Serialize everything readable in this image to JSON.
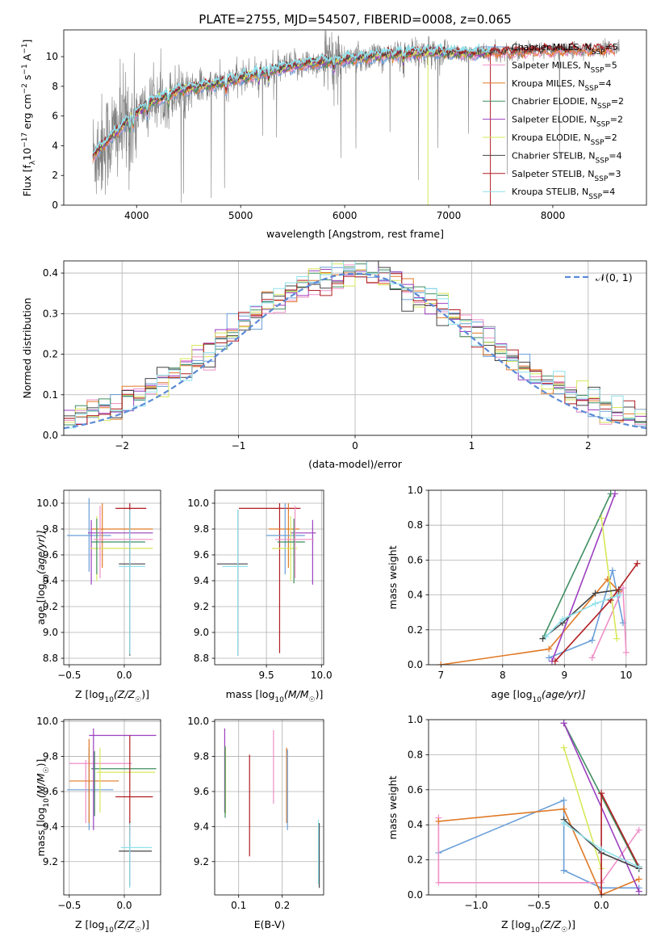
{
  "figure": {
    "title": "PLATE=2755, MJD=54507, FIBERID=0008, z=0.065"
  },
  "colors": {
    "data": "#7f7f7f",
    "palette": [
      "#6a9fd8",
      "#ef8fc7",
      "#e07a27",
      "#3f8f60",
      "#9b3fbf",
      "#d7e85a",
      "#444444",
      "#b11d22",
      "#8fe1ec"
    ]
  },
  "chart_data": [
    {
      "id": "spectrum",
      "type": "line",
      "title": "PLATE=2755, MJD=54507, FIBERID=0008, z=0.065",
      "xlabel": "wavelength [Angstrom, rest frame]",
      "ylabel": "Flux [f",
      "ylabel_sub": "λ",
      "ylabel_mid": "10",
      "ylabel_sup": "−17",
      "ylabel_end": " erg cm",
      "ylabel_sup2": "−2",
      "ylabel_tail": " s",
      "ylabel_sup3": "−1",
      "ylabel_a": " A",
      "ylabel_sup4": "−1",
      "ylabel_close": "]",
      "xlim": [
        3300,
        8900
      ],
      "ylim": [
        0,
        11.8
      ],
      "xticks": [
        4000,
        5000,
        6000,
        7000,
        8000
      ],
      "yticks": [
        0,
        2,
        4,
        6,
        8,
        10
      ],
      "grid": false,
      "legend_position": "right",
      "continuum_knots": [
        [
          3580,
          3.3
        ],
        [
          3700,
          4.2
        ],
        [
          3900,
          5.6
        ],
        [
          4100,
          6.8
        ],
        [
          4400,
          7.7
        ],
        [
          4800,
          8.2
        ],
        [
          5200,
          8.9
        ],
        [
          5600,
          9.5
        ],
        [
          6000,
          9.8
        ],
        [
          6400,
          10.1
        ],
        [
          6800,
          10.3
        ],
        [
          7200,
          10.2
        ],
        [
          7500,
          10.3
        ],
        [
          8000,
          10.4
        ],
        [
          8500,
          10.5
        ],
        [
          8630,
          10.4
        ]
      ],
      "data_range": [
        3580,
        8640
      ],
      "series": [
        {
          "name": "Chabrier MILES",
          "nssp": "5"
        },
        {
          "name": "Salpeter MILES",
          "nssp": "5"
        },
        {
          "name": "Kroupa MILES",
          "nssp": "4"
        },
        {
          "name": "Chabrier ELODIE",
          "nssp": "2"
        },
        {
          "name": "Salpeter ELODIE",
          "nssp": "2"
        },
        {
          "name": "Kroupa ELODIE",
          "nssp": "2"
        },
        {
          "name": "Chabrier STELIB",
          "nssp": "4"
        },
        {
          "name": "Salpeter STELIB",
          "nssp": "3"
        },
        {
          "name": "Kroupa STELIB",
          "nssp": "4"
        }
      ],
      "legend_prefix": "N",
      "legend_sub": "SSP",
      "legend_eq": "="
    },
    {
      "id": "residuals",
      "type": "histogram",
      "xlabel": "(data-model)/error",
      "ylabel": "Normed distribution",
      "xlim": [
        -2.5,
        2.5
      ],
      "ylim": [
        0,
        0.43
      ],
      "xticks": [
        -2,
        -1,
        0,
        1,
        2
      ],
      "yticks": [
        0.0,
        0.1,
        0.2,
        0.3,
        0.4
      ],
      "grid": true,
      "bin_width": 0.1,
      "legend_position": "top-right",
      "reference": {
        "label": "𝒩(0, 1)",
        "mean": 0,
        "sigma": 1
      }
    },
    {
      "id": "age-vs-z",
      "type": "errorbar",
      "xlabel": "Z [log",
      "xlabel_sub": "10",
      "xlabel_end": "(Z/Z",
      "xlabel_sub2": "☉",
      "xlabel_close": ")]",
      "ylabel": "age  [log",
      "ylabel_sub": "10",
      "ylabel_end": "(age/yr)]",
      "xlim": [
        -0.55,
        0.33
      ],
      "ylim": [
        8.75,
        10.1
      ],
      "xticks": [
        -0.5,
        0.0
      ],
      "yticks": [
        8.8,
        9.0,
        9.2,
        9.4,
        9.6,
        9.8,
        10.0
      ],
      "grid": true,
      "points": [
        {
          "x": -0.32,
          "xe": [
            -0.52,
            -0.12
          ],
          "y": 9.75,
          "ye": [
            9.47,
            10.04
          ],
          "c": 0
        },
        {
          "x": -0.2,
          "xe": [
            -0.3,
            0.26
          ],
          "y": 9.8,
          "ye": [
            9.5,
            10.0
          ],
          "c": 2
        },
        {
          "x": -0.3,
          "xe": [
            -0.33,
            0.26
          ],
          "y": 9.77,
          "ye": [
            9.37,
            9.87
          ],
          "c": 4
        },
        {
          "x": -0.25,
          "xe": [
            -0.31,
            0.26
          ],
          "y": 9.65,
          "ye": [
            9.4,
            9.9
          ],
          "c": 5
        },
        {
          "x": -0.25,
          "xe": [
            -0.3,
            0.19
          ],
          "y": 9.7,
          "ye": [
            9.45,
            9.88
          ],
          "c": 3
        },
        {
          "x": 0.05,
          "xe": [
            -0.08,
            0.2
          ],
          "y": 9.96,
          "ye": [
            9.5,
            10.0
          ],
          "c": 7
        },
        {
          "x": 0.05,
          "xe": [
            -0.05,
            0.19
          ],
          "y": 9.53,
          "ye": [
            8.82,
            9.95
          ],
          "c": 6
        },
        {
          "x": 0.05,
          "xe": [
            -0.05,
            0.19
          ],
          "y": 9.51,
          "ye": [
            8.83,
            9.95
          ],
          "c": 8
        },
        {
          "x": -0.22,
          "xe": [
            -0.28,
            0.26
          ],
          "y": 9.72,
          "ye": [
            9.42,
            9.98
          ],
          "c": 1
        }
      ]
    },
    {
      "id": "age-vs-mass",
      "type": "errorbar",
      "xlabel": "mass [log",
      "xlabel_sub": "10",
      "xlabel_end": "(M/M",
      "xlabel_sub2": "☉",
      "xlabel_close": ")]",
      "xlim": [
        9.03,
        10.02
      ],
      "ylim": [
        8.75,
        10.1
      ],
      "xticks": [
        9.5,
        10.0
      ],
      "yticks": [
        8.8,
        9.0,
        9.2,
        9.4,
        9.6,
        9.8,
        10.0
      ],
      "grid": true,
      "points": [
        {
          "x": 9.62,
          "xe": [
            9.25,
            9.81
          ],
          "y": 9.96,
          "ye": [
            8.84,
            10.0
          ],
          "c": 7
        },
        {
          "x": 9.7,
          "xe": [
            9.52,
            9.8
          ],
          "y": 9.8,
          "ye": [
            9.5,
            10.0
          ],
          "c": 2
        },
        {
          "x": 9.67,
          "xe": [
            9.5,
            9.85
          ],
          "y": 9.75,
          "ye": [
            9.45,
            10.0
          ],
          "c": 0
        },
        {
          "x": 9.92,
          "xe": [
            9.72,
            9.95
          ],
          "y": 9.77,
          "ye": [
            9.37,
            9.87
          ],
          "c": 4
        },
        {
          "x": 9.72,
          "xe": [
            9.55,
            9.78
          ],
          "y": 9.65,
          "ye": [
            9.4,
            9.9
          ],
          "c": 5
        },
        {
          "x": 9.75,
          "xe": [
            9.6,
            9.85
          ],
          "y": 9.7,
          "ye": [
            9.38,
            9.88
          ],
          "c": 3
        },
        {
          "x": 9.24,
          "xe": [
            9.05,
            9.33
          ],
          "y": 9.53,
          "ye": [
            8.82,
            9.95
          ],
          "c": 6
        },
        {
          "x": 9.24,
          "xe": [
            9.1,
            9.33
          ],
          "y": 9.51,
          "ye": [
            8.82,
            9.95
          ],
          "c": 8
        },
        {
          "x": 9.76,
          "xe": [
            9.58,
            9.93
          ],
          "y": 9.72,
          "ye": [
            9.42,
            9.98
          ],
          "c": 1
        }
      ]
    },
    {
      "id": "weight-vs-age",
      "type": "line",
      "xlabel": "age  [log",
      "xlabel_sub": "10",
      "xlabel_end": "(age/yr)]",
      "ylabel": "mass weight",
      "xlim": [
        6.8,
        10.33
      ],
      "ylim": [
        0,
        1
      ],
      "xticks": [
        7,
        8,
        9,
        10
      ],
      "yticks": [
        0.0,
        0.2,
        0.4,
        0.6,
        0.8,
        1.0
      ],
      "grid": true,
      "series": [
        {
          "c": 0,
          "x": [
            8.75,
            9.45,
            9.78,
            9.95
          ],
          "y": [
            0.04,
            0.14,
            0.54,
            0.24
          ]
        },
        {
          "c": 1,
          "x": [
            9.45,
            9.95,
            10.0
          ],
          "y": [
            0.04,
            0.44,
            0.07
          ]
        },
        {
          "c": 2,
          "x": [
            7.0,
            8.75,
            9.7,
            9.88
          ],
          "y": [
            0.0,
            0.09,
            0.49,
            0.42
          ]
        },
        {
          "c": 3,
          "x": [
            8.65,
            9.75
          ],
          "y": [
            0.15,
            0.98
          ]
        },
        {
          "c": 4,
          "x": [
            8.8,
            9.82
          ],
          "y": [
            0.02,
            0.98
          ]
        },
        {
          "c": 5,
          "x": [
            9.6,
            9.85
          ],
          "y": [
            0.84,
            0.15
          ]
        },
        {
          "c": 6,
          "x": [
            8.65,
            8.97,
            9.5,
            9.88
          ],
          "y": [
            0.15,
            0.24,
            0.41,
            0.43
          ]
        },
        {
          "c": 7,
          "x": [
            8.85,
            9.75,
            10.18
          ],
          "y": [
            0.02,
            0.37,
            0.58
          ]
        },
        {
          "c": 8,
          "x": [
            8.7,
            8.97,
            9.5,
            9.9
          ],
          "y": [
            0.16,
            0.26,
            0.35,
            0.4
          ]
        }
      ]
    },
    {
      "id": "mass-vs-z",
      "type": "errorbar",
      "xlabel": "Z [log",
      "xlabel_sub": "10",
      "xlabel_end": "(Z/Z",
      "xlabel_sub2": "☉",
      "xlabel_close": ")]",
      "ylabel": "mass [log",
      "ylabel_sub": "10",
      "ylabel_end": "(M/M",
      "ylabel_sub2": "☉",
      "ylabel_close": ")]",
      "xlim": [
        -0.55,
        0.33
      ],
      "ylim": [
        9.01,
        10.01
      ],
      "xticks": [
        -0.5,
        0.0
      ],
      "yticks": [
        9.2,
        9.4,
        9.6,
        9.8,
        10.0
      ],
      "grid": true,
      "points": [
        {
          "x": -0.32,
          "xe": [
            -0.52,
            -0.1
          ],
          "y": 9.61,
          "ye": [
            9.38,
            9.85
          ],
          "c": 0
        },
        {
          "x": -0.35,
          "xe": [
            -0.5,
            0.07
          ],
          "y": 9.76,
          "ye": [
            9.42,
            9.78
          ],
          "c": 1
        },
        {
          "x": -0.32,
          "xe": [
            -0.5,
            -0.05
          ],
          "y": 9.66,
          "ye": [
            9.42,
            9.9
          ],
          "c": 2
        },
        {
          "x": -0.27,
          "xe": [
            -0.3,
            0.29
          ],
          "y": 9.73,
          "ye": [
            9.46,
            9.83
          ],
          "c": 3
        },
        {
          "x": -0.28,
          "xe": [
            -0.32,
            0.29
          ],
          "y": 9.92,
          "ye": [
            9.38,
            9.96
          ],
          "c": 4
        },
        {
          "x": -0.22,
          "xe": [
            -0.25,
            0.28
          ],
          "y": 9.71,
          "ye": [
            9.48,
            9.85
          ],
          "c": 5
        },
        {
          "x": 0.05,
          "xe": [
            -0.05,
            0.25
          ],
          "y": 9.26,
          "ye": [
            9.06,
            9.43
          ],
          "c": 6
        },
        {
          "x": 0.05,
          "xe": [
            -0.08,
            0.26
          ],
          "y": 9.57,
          "ye": [
            9.35,
            9.92
          ],
          "c": 7
        },
        {
          "x": 0.05,
          "xe": [
            -0.03,
            0.25
          ],
          "y": 9.28,
          "ye": [
            9.05,
            9.42
          ],
          "c": 8
        }
      ]
    },
    {
      "id": "mass-vs-ebv",
      "type": "errorbar",
      "xlabel": "E(B-V)",
      "xlim": [
        0.045,
        0.295
      ],
      "ylim": [
        9.01,
        10.01
      ],
      "xticks": [
        0.1,
        0.2
      ],
      "yticks": [
        9.2,
        9.4,
        9.6,
        9.8,
        10.0
      ],
      "grid": true,
      "points": [
        {
          "x": 0.068,
          "y": 9.92,
          "ye": [
            9.48,
            9.96
          ],
          "c": 4
        },
        {
          "x": 0.07,
          "y": 9.71,
          "ye": [
            9.47,
            9.85
          ],
          "c": 5
        },
        {
          "x": 0.069,
          "y": 9.73,
          "ye": [
            9.45,
            9.86
          ],
          "c": 3
        },
        {
          "x": 0.125,
          "y": 9.57,
          "ye": [
            9.23,
            9.81
          ],
          "c": 7
        },
        {
          "x": 0.18,
          "y": 9.76,
          "ye": [
            9.53,
            9.95
          ],
          "c": 1
        },
        {
          "x": 0.21,
          "y": 9.66,
          "ye": [
            9.42,
            9.85
          ],
          "c": 2
        },
        {
          "x": 0.212,
          "y": 9.61,
          "ye": [
            9.38,
            9.84
          ],
          "c": 0
        },
        {
          "x": 0.285,
          "y": 9.26,
          "ye": [
            9.05,
            9.42
          ],
          "c": 6
        },
        {
          "x": 0.283,
          "y": 9.28,
          "ye": [
            9.07,
            9.44
          ],
          "c": 8
        }
      ]
    },
    {
      "id": "weight-vs-z",
      "type": "line",
      "xlabel": "Z [log",
      "xlabel_sub": "10",
      "xlabel_end": "(Z/Z",
      "xlabel_sub2": "☉",
      "xlabel_close": ")]",
      "ylabel": "mass weight",
      "xlim": [
        -1.38,
        0.36
      ],
      "ylim": [
        0,
        1
      ],
      "xticks": [
        -1.0,
        -0.5,
        0.0
      ],
      "yticks": [
        0.0,
        0.2,
        0.4,
        0.6,
        0.8,
        1.0
      ],
      "grid": true,
      "series": [
        {
          "c": 0,
          "x": [
            -1.3,
            -0.3,
            -0.3,
            -0.3,
            0.0,
            0.3
          ],
          "y": [
            0.24,
            0.54,
            0.14,
            0.14,
            0.04,
            0.04
          ]
        },
        {
          "c": 1,
          "x": [
            -1.3,
            -1.3,
            0.0,
            0.3
          ],
          "y": [
            0.44,
            0.07,
            0.07,
            0.37
          ]
        },
        {
          "c": 2,
          "x": [
            -1.3,
            -0.3,
            0.0,
            0.3
          ],
          "y": [
            0.42,
            0.49,
            0.0,
            0.09
          ]
        },
        {
          "c": 3,
          "x": [
            -0.3,
            0.3
          ],
          "y": [
            0.98,
            0.15
          ]
        },
        {
          "c": 4,
          "x": [
            -0.3,
            0.3
          ],
          "y": [
            0.98,
            0.02
          ]
        },
        {
          "c": 5,
          "x": [
            -0.3,
            0.0
          ],
          "y": [
            0.84,
            0.15
          ]
        },
        {
          "c": 6,
          "x": [
            -0.3,
            0.0,
            0.3
          ],
          "y": [
            0.43,
            0.24,
            0.15
          ]
        },
        {
          "c": 7,
          "x": [
            0.0,
            0.0,
            0.3
          ],
          "y": [
            0.0,
            0.58,
            0.16
          ]
        },
        {
          "c": 8,
          "x": [
            -0.3,
            0.0,
            0.3
          ],
          "y": [
            0.41,
            0.26,
            0.16
          ]
        }
      ]
    }
  ]
}
